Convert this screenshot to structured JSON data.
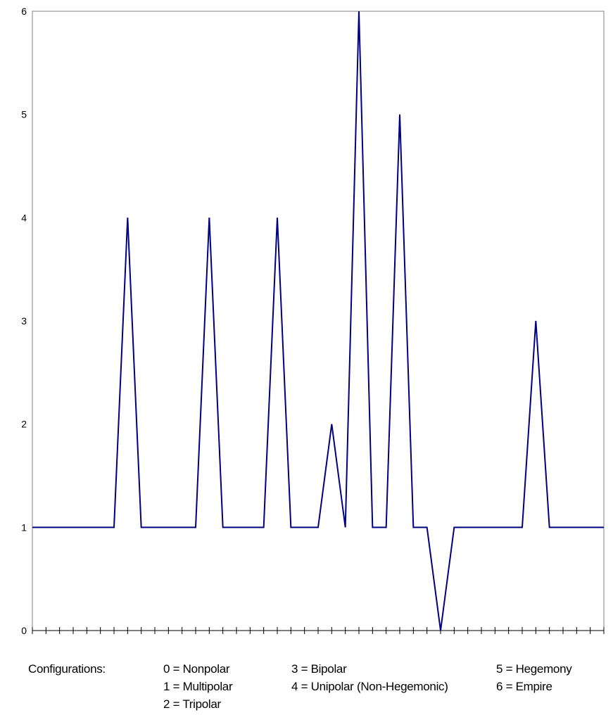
{
  "chart_data": {
    "type": "line",
    "title": "",
    "xlabel": "",
    "ylabel": "",
    "ylim": [
      0,
      6
    ],
    "yticks": [
      "0",
      "1",
      "2",
      "3",
      "4",
      "5",
      "6"
    ],
    "grid": false,
    "series": [
      {
        "color": "#000080",
        "values": [
          1,
          1,
          1,
          1,
          1,
          1,
          1,
          4,
          1,
          1,
          1,
          1,
          1,
          4,
          1,
          1,
          1,
          1,
          4,
          1,
          1,
          1,
          2,
          1,
          6,
          1,
          1,
          5,
          1,
          1,
          0,
          1,
          1,
          1,
          1,
          1,
          1,
          3,
          1,
          1,
          1,
          1,
          1
        ]
      }
    ]
  },
  "legend": {
    "heading": "Configurations:",
    "items": [
      "0 = Nonpolar",
      "1 = Multipolar",
      "2 = Tripolar",
      "3 = Bipolar",
      "4 = Unipolar (Non-Hegemonic)",
      "5 = Hegemony",
      "6 = Empire"
    ]
  }
}
